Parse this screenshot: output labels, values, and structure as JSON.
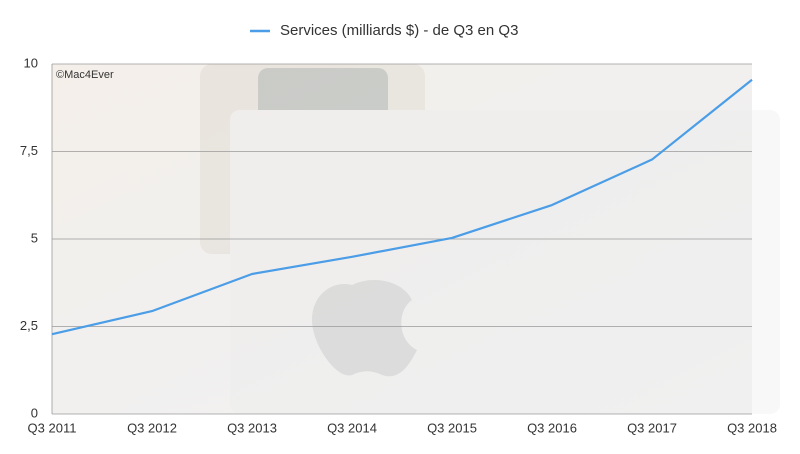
{
  "chart_data": {
    "type": "line",
    "annotation": "©Mac4Ever",
    "categories": [
      "Q3 2011",
      "Q3 2012",
      "Q3 2013",
      "Q3 2014",
      "Q3 2015",
      "Q3 2016",
      "Q3 2017",
      "Q3 2018"
    ],
    "series": [
      {
        "name": "Services (milliards $) - de Q3 en Q3",
        "color": "#4a9de6",
        "values": [
          2.28,
          2.94,
          4.0,
          4.49,
          5.03,
          5.97,
          7.27,
          9.55
        ]
      }
    ],
    "ylim": [
      0,
      10
    ],
    "yticks": [
      0,
      {
        "value": 2.5,
        "label": "2,5"
      },
      5,
      {
        "value": 7.5,
        "label": "7,5"
      },
      10
    ],
    "grid": true,
    "legend": "top"
  }
}
